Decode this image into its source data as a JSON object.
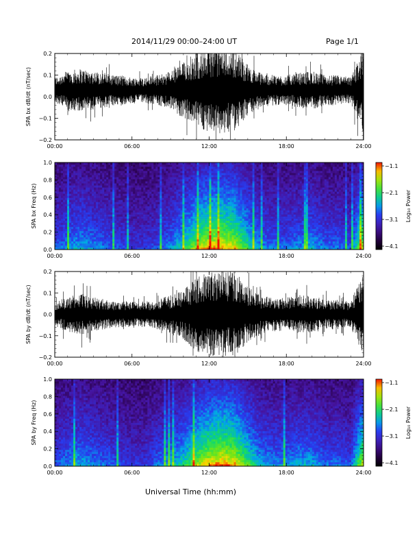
{
  "header": {
    "title": "2014/11/29  00:00–24:00 UT",
    "page": "Page 1/1"
  },
  "footer": {
    "xaxis_title": "Universal Time (hh:mm)"
  },
  "chart_data": [
    {
      "type": "line",
      "ylabel": "SPA bx dB/dt (nT/sec)",
      "xticks": [
        "00:00",
        "06:00",
        "12:00",
        "18:00",
        "24:00"
      ],
      "yticks": [
        "0.2",
        "0.1",
        "0.0",
        "−0.1",
        "−0.2"
      ],
      "xlim": [
        0,
        24
      ],
      "ylim": [
        -0.2,
        0.2
      ],
      "color": "#000000",
      "envelope": {
        "hours": [
          0,
          1,
          2,
          3,
          4,
          5,
          6,
          7,
          8,
          9,
          10,
          11,
          12,
          13,
          14,
          15,
          16,
          17,
          18,
          19,
          20,
          21,
          22,
          23,
          24
        ],
        "amplitude": [
          0.06,
          0.09,
          0.1,
          0.09,
          0.08,
          0.07,
          0.06,
          0.06,
          0.07,
          0.09,
          0.13,
          0.16,
          0.2,
          0.2,
          0.19,
          0.12,
          0.08,
          0.07,
          0.07,
          0.08,
          0.09,
          0.07,
          0.07,
          0.06,
          0.2
        ],
        "offset": 0.03
      }
    },
    {
      "type": "heatmap",
      "ylabel": "SPA bx Freq (Hz)",
      "xticks": [
        "00:00",
        "06:00",
        "12:00",
        "18:00",
        "24:00"
      ],
      "yticks": [
        "1.0",
        "0.8",
        "0.6",
        "0.4",
        "0.2",
        "0.0"
      ],
      "xlim": [
        0,
        24
      ],
      "ylim": [
        0,
        1.0
      ],
      "colorbar": {
        "label": "Log₁₀ Power",
        "ticks": [
          "−1.1",
          "−2.1",
          "−3.1",
          "−4.1"
        ],
        "range": [
          -4.1,
          -1.1
        ]
      },
      "activity": {
        "hours": [
          0,
          1,
          2,
          3,
          4,
          5,
          6,
          7,
          8,
          9,
          10,
          11,
          12,
          13,
          14,
          15,
          16,
          17,
          18,
          19,
          20,
          21,
          22,
          23,
          24
        ],
        "level": [
          0.35,
          0.45,
          0.5,
          0.45,
          0.4,
          0.35,
          0.3,
          0.3,
          0.35,
          0.45,
          0.6,
          0.8,
          0.95,
          0.95,
          0.9,
          0.65,
          0.45,
          0.4,
          0.4,
          0.45,
          0.5,
          0.4,
          0.4,
          0.35,
          0.9
        ]
      }
    },
    {
      "type": "line",
      "ylabel": "SPA by dB/dt (nT/sec)",
      "xticks": [
        "00:00",
        "06:00",
        "12:00",
        "18:00",
        "24:00"
      ],
      "yticks": [
        "0.2",
        "0.1",
        "0.0",
        "−0.1",
        "−0.2"
      ],
      "xlim": [
        0,
        24
      ],
      "ylim": [
        -0.2,
        0.2
      ],
      "color": "#000000",
      "envelope": {
        "hours": [
          0,
          1,
          2,
          3,
          4,
          5,
          6,
          7,
          8,
          9,
          10,
          11,
          12,
          13,
          14,
          15,
          16,
          17,
          18,
          19,
          20,
          21,
          22,
          23,
          24
        ],
        "amplitude": [
          0.06,
          0.08,
          0.1,
          0.08,
          0.07,
          0.06,
          0.06,
          0.06,
          0.07,
          0.09,
          0.12,
          0.17,
          0.2,
          0.2,
          0.2,
          0.13,
          0.09,
          0.08,
          0.08,
          0.09,
          0.09,
          0.07,
          0.07,
          0.06,
          0.2
        ],
        "offset": 0.0
      }
    },
    {
      "type": "heatmap",
      "ylabel": "SPA by Freq (Hz)",
      "xticks": [
        "00:00",
        "06:00",
        "12:00",
        "18:00",
        "24:00"
      ],
      "yticks": [
        "1.0",
        "0.8",
        "0.6",
        "0.4",
        "0.2",
        "0.0"
      ],
      "xlim": [
        0,
        24
      ],
      "ylim": [
        0,
        1.0
      ],
      "colorbar": {
        "label": "Log₁₀ Power",
        "ticks": [
          "−1.1",
          "−2.1",
          "−3.1",
          "−4.1"
        ],
        "range": [
          -4.1,
          -1.1
        ]
      },
      "activity": {
        "hours": [
          0,
          1,
          2,
          3,
          4,
          5,
          6,
          7,
          8,
          9,
          10,
          11,
          12,
          13,
          14,
          15,
          16,
          17,
          18,
          19,
          20,
          21,
          22,
          23,
          24
        ],
        "level": [
          0.35,
          0.45,
          0.5,
          0.45,
          0.4,
          0.35,
          0.3,
          0.3,
          0.4,
          0.5,
          0.6,
          0.8,
          0.95,
          1.0,
          0.95,
          0.7,
          0.5,
          0.45,
          0.45,
          0.5,
          0.5,
          0.4,
          0.4,
          0.35,
          0.9
        ]
      }
    }
  ]
}
